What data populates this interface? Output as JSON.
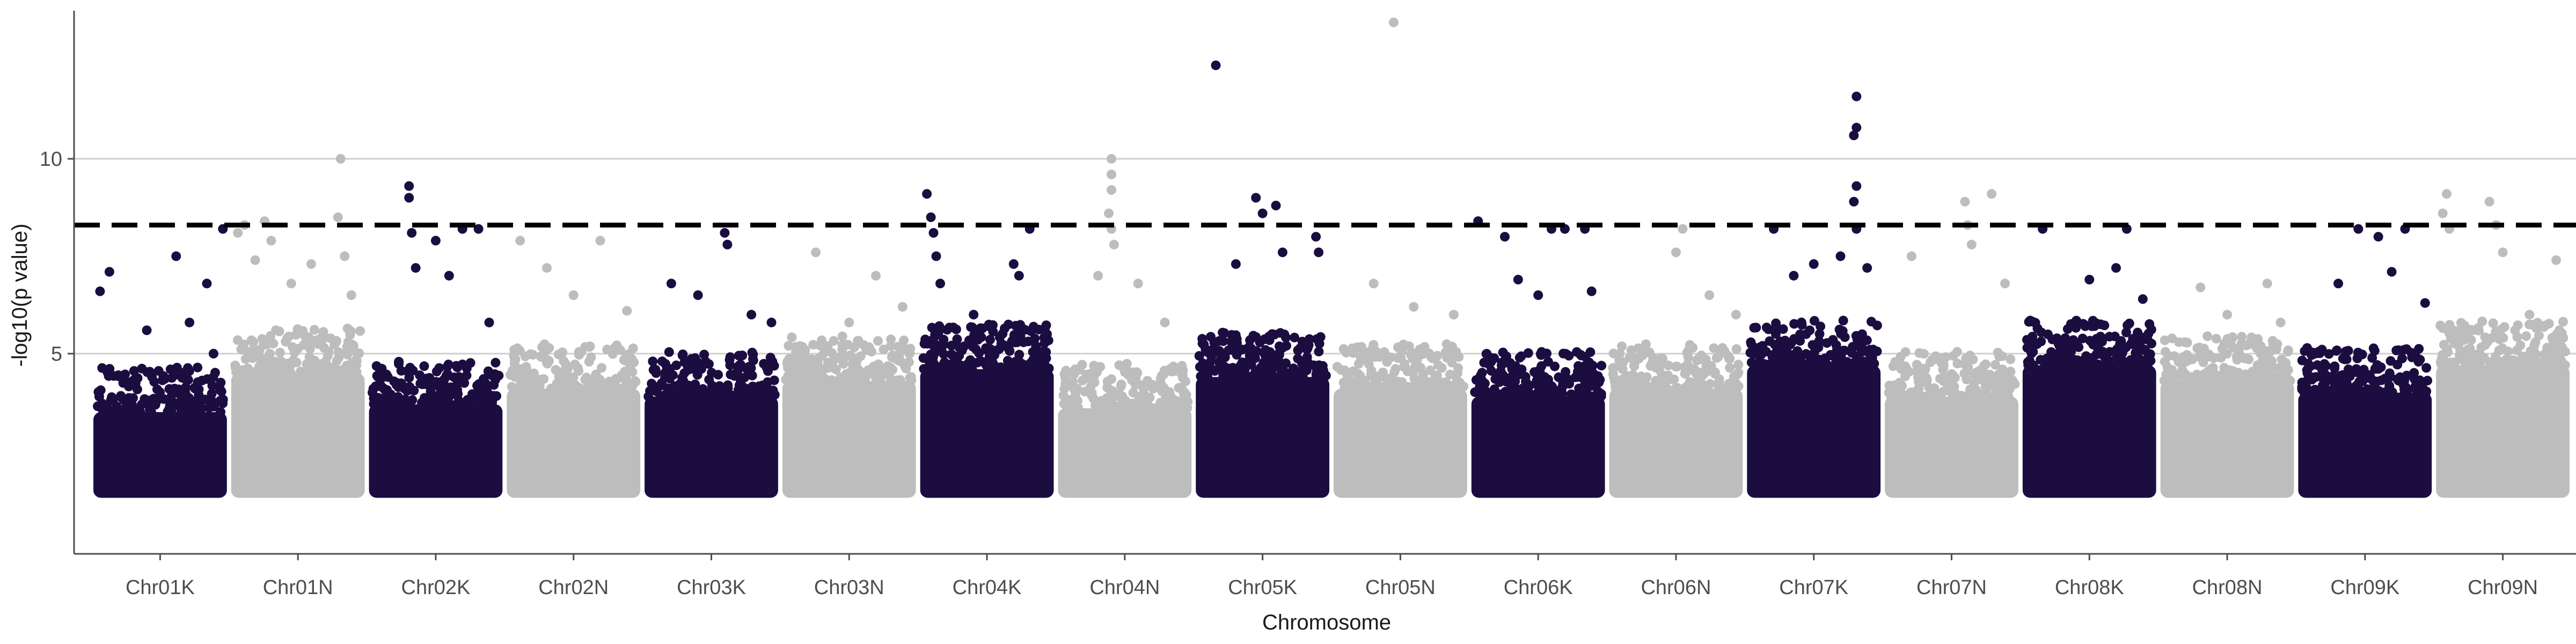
{
  "chart_data": {
    "type": "scatter",
    "subtype": "manhattan",
    "title": "",
    "xlabel": "Chromosome",
    "ylabel": "-log10(p value)",
    "ylim": [
      0,
      13.8
    ],
    "yticks": [
      5,
      10
    ],
    "grid": {
      "horizontal": true,
      "vertical": false
    },
    "legend": "none",
    "significance_threshold": 8.3,
    "baseline_min": 1.3,
    "colors": {
      "dark": "#1b0d40",
      "light": "#bdbdbd",
      "threshold": "#000000"
    },
    "categories": [
      "Chr01K",
      "Chr01N",
      "Chr02K",
      "Chr02N",
      "Chr03K",
      "Chr03N",
      "Chr04K",
      "Chr04N",
      "Chr05K",
      "Chr05N",
      "Chr06K",
      "Chr06N",
      "Chr07K",
      "Chr07N",
      "Chr08K",
      "Chr08N",
      "Chr09K",
      "Chr09N"
    ],
    "chromosomes": [
      {
        "name": "Chr01K",
        "color": "dark",
        "body_max": 4.4,
        "peaks": [
          [
            0.05,
            6.6
          ],
          [
            0.12,
            7.1
          ],
          [
            0.4,
            5.6
          ],
          [
            0.62,
            7.5
          ],
          [
            0.72,
            5.8
          ],
          [
            0.85,
            6.8
          ],
          [
            0.9,
            5.0
          ],
          [
            0.97,
            8.2
          ]
        ]
      },
      {
        "name": "Chr01N",
        "color": "light",
        "body_max": 5.4,
        "peaks": [
          [
            0.05,
            8.1
          ],
          [
            0.1,
            8.3
          ],
          [
            0.18,
            7.4
          ],
          [
            0.25,
            8.4
          ],
          [
            0.3,
            7.9
          ],
          [
            0.45,
            6.8
          ],
          [
            0.6,
            7.3
          ],
          [
            0.82,
            10.0
          ],
          [
            0.8,
            8.5
          ],
          [
            0.85,
            7.5
          ],
          [
            0.9,
            6.5
          ]
        ]
      },
      {
        "name": "Chr02K",
        "color": "dark",
        "body_max": 4.6,
        "peaks": [
          [
            0.3,
            9.3
          ],
          [
            0.3,
            9.0
          ],
          [
            0.32,
            8.1
          ],
          [
            0.35,
            7.2
          ],
          [
            0.5,
            7.9
          ],
          [
            0.6,
            7.0
          ],
          [
            0.7,
            8.2
          ],
          [
            0.82,
            8.2
          ],
          [
            0.9,
            5.8
          ]
        ]
      },
      {
        "name": "Chr02N",
        "color": "light",
        "body_max": 5.0,
        "peaks": [
          [
            0.1,
            7.9
          ],
          [
            0.3,
            7.2
          ],
          [
            0.5,
            6.5
          ],
          [
            0.7,
            7.9
          ],
          [
            0.9,
            6.1
          ]
        ]
      },
      {
        "name": "Chr03K",
        "color": "dark",
        "body_max": 4.8,
        "peaks": [
          [
            0.2,
            6.8
          ],
          [
            0.4,
            6.5
          ],
          [
            0.6,
            8.1
          ],
          [
            0.62,
            7.8
          ],
          [
            0.8,
            6.0
          ],
          [
            0.95,
            5.8
          ]
        ]
      },
      {
        "name": "Chr03N",
        "color": "light",
        "body_max": 5.2,
        "peaks": [
          [
            0.25,
            7.6
          ],
          [
            0.5,
            5.8
          ],
          [
            0.7,
            7.0
          ],
          [
            0.9,
            6.2
          ]
        ]
      },
      {
        "name": "Chr04K",
        "color": "dark",
        "body_max": 5.5,
        "peaks": [
          [
            0.05,
            9.1
          ],
          [
            0.08,
            8.5
          ],
          [
            0.1,
            8.1
          ],
          [
            0.12,
            7.5
          ],
          [
            0.15,
            6.8
          ],
          [
            0.4,
            6.0
          ],
          [
            0.7,
            7.3
          ],
          [
            0.74,
            7.0
          ],
          [
            0.82,
            8.2
          ],
          [
            0.95,
            5.5
          ]
        ]
      },
      {
        "name": "Chr04N",
        "color": "light",
        "body_max": 4.5,
        "peaks": [
          [
            0.4,
            10.0
          ],
          [
            0.4,
            9.6
          ],
          [
            0.4,
            9.2
          ],
          [
            0.38,
            8.6
          ],
          [
            0.4,
            8.2
          ],
          [
            0.42,
            7.8
          ],
          [
            0.3,
            7.0
          ],
          [
            0.6,
            6.8
          ],
          [
            0.8,
            5.8
          ]
        ]
      },
      {
        "name": "Chr05K",
        "color": "dark",
        "body_max": 5.3,
        "peaks": [
          [
            0.15,
            12.4
          ],
          [
            0.45,
            9.0
          ],
          [
            0.5,
            8.6
          ],
          [
            0.6,
            8.8
          ],
          [
            0.65,
            7.6
          ],
          [
            0.9,
            8.0
          ],
          [
            0.92,
            7.6
          ],
          [
            0.3,
            7.3
          ]
        ]
      },
      {
        "name": "Chr05N",
        "color": "light",
        "body_max": 5.0,
        "peaks": [
          [
            0.45,
            13.5
          ],
          [
            0.3,
            6.8
          ],
          [
            0.6,
            6.2
          ],
          [
            0.9,
            6.0
          ]
        ]
      },
      {
        "name": "Chr06K",
        "color": "dark",
        "body_max": 4.8,
        "peaks": [
          [
            0.05,
            8.4
          ],
          [
            0.25,
            8.0
          ],
          [
            0.35,
            6.9
          ],
          [
            0.5,
            6.5
          ],
          [
            0.6,
            8.2
          ],
          [
            0.7,
            8.2
          ],
          [
            0.85,
            8.2
          ],
          [
            0.9,
            6.6
          ]
        ]
      },
      {
        "name": "Chr06N",
        "color": "light",
        "body_max": 5.0,
        "peaks": [
          [
            0.5,
            7.6
          ],
          [
            0.55,
            8.2
          ],
          [
            0.75,
            6.5
          ],
          [
            0.95,
            6.0
          ]
        ]
      },
      {
        "name": "Chr07K",
        "color": "dark",
        "body_max": 5.6,
        "peaks": [
          [
            0.2,
            8.2
          ],
          [
            0.35,
            7.0
          ],
          [
            0.5,
            7.3
          ],
          [
            0.82,
            11.6
          ],
          [
            0.82,
            10.8
          ],
          [
            0.8,
            10.6
          ],
          [
            0.82,
            9.3
          ],
          [
            0.8,
            8.9
          ],
          [
            0.82,
            8.2
          ],
          [
            0.7,
            7.5
          ],
          [
            0.9,
            7.2
          ]
        ]
      },
      {
        "name": "Chr07N",
        "color": "light",
        "body_max": 4.8,
        "peaks": [
          [
            0.2,
            7.5
          ],
          [
            0.6,
            8.9
          ],
          [
            0.62,
            8.3
          ],
          [
            0.65,
            7.8
          ],
          [
            0.8,
            9.1
          ],
          [
            0.9,
            6.8
          ]
        ]
      },
      {
        "name": "Chr08K",
        "color": "dark",
        "body_max": 5.6,
        "peaks": [
          [
            0.15,
            8.2
          ],
          [
            0.5,
            6.9
          ],
          [
            0.7,
            7.2
          ],
          [
            0.78,
            8.2
          ],
          [
            0.9,
            6.4
          ]
        ]
      },
      {
        "name": "Chr08N",
        "color": "light",
        "body_max": 5.2,
        "peaks": [
          [
            0.3,
            6.7
          ],
          [
            0.5,
            6.0
          ],
          [
            0.8,
            6.8
          ],
          [
            0.9,
            5.8
          ]
        ]
      },
      {
        "name": "Chr09K",
        "color": "dark",
        "body_max": 4.9,
        "peaks": [
          [
            0.3,
            6.8
          ],
          [
            0.45,
            8.2
          ],
          [
            0.6,
            8.0
          ],
          [
            0.7,
            7.1
          ],
          [
            0.8,
            8.2
          ],
          [
            0.95,
            6.3
          ]
        ]
      },
      {
        "name": "Chr09N",
        "color": "light",
        "body_max": 5.6,
        "peaks": [
          [
            0.05,
            8.6
          ],
          [
            0.08,
            9.1
          ],
          [
            0.1,
            8.2
          ],
          [
            0.4,
            8.9
          ],
          [
            0.45,
            8.3
          ],
          [
            0.5,
            7.6
          ],
          [
            0.7,
            6.0
          ],
          [
            0.9,
            7.4
          ]
        ]
      }
    ]
  }
}
